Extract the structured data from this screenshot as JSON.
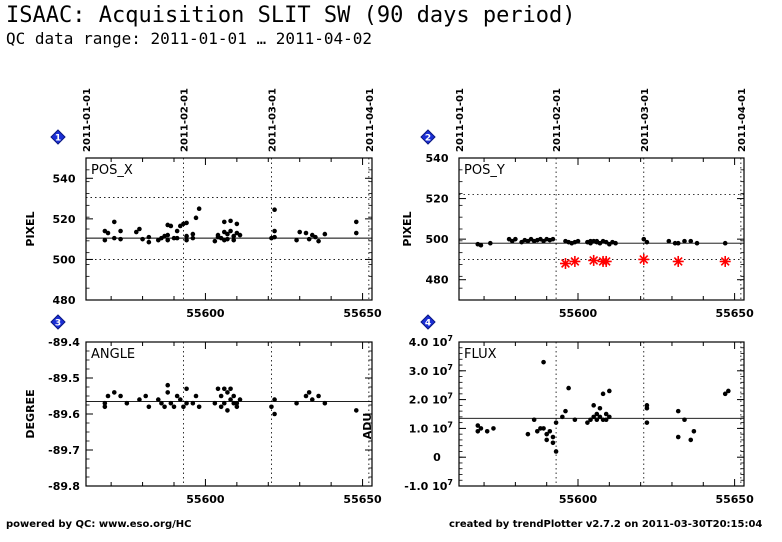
{
  "title": "ISAAC: Acquisition SLIT SW (90 days period)",
  "subtitle": "QC data range: 2011-01-01 … 2011-04-02",
  "footer": {
    "left": "powered by QC: www.eso.org/HC",
    "right": "created by trendPlotter v2.7.2 on 2011-03-30T20:15:04"
  },
  "chart_data": [
    {
      "type": "scatter",
      "panel": 1,
      "title": "POS_X",
      "ylabel": "PIXEL",
      "xlim": [
        55562,
        55653
      ],
      "ylim": [
        480,
        550
      ],
      "xticks": [
        55600,
        55650
      ],
      "yticks": [
        480,
        500,
        520,
        540
      ],
      "date_marks": [
        {
          "x": 55562,
          "label": "2011-01-01"
        },
        {
          "x": 55593,
          "label": "2011-02-01"
        },
        {
          "x": 55621,
          "label": "2011-03-01"
        },
        {
          "x": 55652,
          "label": "2011-04-01"
        }
      ],
      "ref_lines": {
        "mean": 510.5,
        "upper": 530.5,
        "lower": 500
      },
      "series": [
        {
          "marker": "dot",
          "color": "#000000",
          "x": [
            55568,
            55568,
            55569,
            55571,
            55571,
            55573,
            55573,
            55578,
            55579,
            55580,
            55582,
            55582,
            55585,
            55586,
            55587,
            55588,
            55588,
            55588,
            55589,
            55590,
            55591,
            55591,
            55592,
            55593,
            55594,
            55594,
            55594,
            55596,
            55596,
            55597,
            55598,
            55603,
            55604,
            55604,
            55605,
            55606,
            55606,
            55606,
            55607,
            55607,
            55608,
            55608,
            55609,
            55609,
            55610,
            55610,
            55611,
            55621,
            55622,
            55622,
            55622,
            55629,
            55630,
            55632,
            55633,
            55634,
            55635,
            55636,
            55638,
            55648,
            55648
          ],
          "y": [
            514,
            509.5,
            513,
            518.5,
            510.5,
            510,
            514,
            513.5,
            515,
            510,
            511,
            508.5,
            509.5,
            510.5,
            511.5,
            509.5,
            512,
            517,
            516.5,
            510.5,
            510.5,
            514,
            516.5,
            517.5,
            511.5,
            509.5,
            518,
            510.5,
            512.5,
            520.5,
            525,
            509,
            511,
            512,
            510.5,
            513.5,
            518.5,
            509.5,
            512.5,
            510,
            514,
            519,
            511.5,
            509.5,
            513,
            517.5,
            512,
            510.5,
            511,
            514,
            524.5,
            509.5,
            513.5,
            513,
            510,
            512,
            511,
            509,
            512.5,
            518.5,
            513
          ]
        }
      ]
    },
    {
      "type": "scatter",
      "panel": 2,
      "title": "POS_Y",
      "ylabel": "PIXEL",
      "xlim": [
        55562,
        55653
      ],
      "ylim": [
        470,
        540
      ],
      "xticks": [
        55600,
        55650
      ],
      "yticks": [
        480,
        500,
        520,
        540
      ],
      "date_marks": [
        {
          "x": 55562,
          "label": "2011-01-01"
        },
        {
          "x": 55593,
          "label": "2011-02-01"
        },
        {
          "x": 55621,
          "label": "2011-03-01"
        },
        {
          "x": 55652,
          "label": "2011-04-01"
        }
      ],
      "ref_lines": {
        "mean": 498,
        "upper": 522,
        "lower": 490
      },
      "series": [
        {
          "name": "",
          "marker": "dot",
          "color": "#000000",
          "x": [
            55568,
            55569,
            55572,
            55578,
            55579,
            55580,
            55582,
            55583,
            55584,
            55585,
            55586,
            55587,
            55588,
            55589,
            55590,
            55591,
            55592,
            55596,
            55597,
            55598,
            55599,
            55600,
            55603,
            55604,
            55604,
            55605,
            55606,
            55606,
            55607,
            55608,
            55609,
            55610,
            55611,
            55612,
            55621,
            55622,
            55629,
            55631,
            55632,
            55634,
            55636,
            55638,
            55647
          ],
          "y": [
            497.5,
            497,
            498,
            500,
            499,
            500,
            498.5,
            499.5,
            499,
            500,
            499,
            499.5,
            500,
            499,
            500,
            499.5,
            500,
            499,
            498.5,
            498,
            498.5,
            499,
            498.5,
            499,
            498,
            499,
            498.5,
            499,
            498,
            499,
            498.5,
            497.5,
            498.5,
            498,
            500,
            498.5,
            499,
            498,
            498,
            499,
            499,
            498,
            498
          ]
        },
        {
          "name": "",
          "marker": "star",
          "color": "#ff0000",
          "x": [
            55596,
            55599,
            55605,
            55608,
            55609,
            55621,
            55632,
            55647
          ],
          "y": [
            488,
            489,
            489.5,
            489,
            489,
            490,
            489,
            489
          ]
        }
      ]
    },
    {
      "type": "scatter",
      "panel": 3,
      "title": "ANGLE",
      "ylabel": "DEGREE",
      "xlim": [
        55562,
        55653
      ],
      "ylim": [
        -89.8,
        -89.4
      ],
      "xticks": [
        55600,
        55650
      ],
      "yticks": [
        -89.8,
        -89.7,
        -89.6,
        -89.5,
        -89.4
      ],
      "date_marks": [
        {
          "x": 55562,
          "label": ""
        },
        {
          "x": 55593,
          "label": ""
        },
        {
          "x": 55621,
          "label": ""
        },
        {
          "x": 55652,
          "label": ""
        }
      ],
      "ref_lines": {
        "mean": -89.565
      },
      "series": [
        {
          "marker": "dot",
          "color": "#000000",
          "x": [
            55568,
            55568,
            55569,
            55571,
            55573,
            55575,
            55579,
            55581,
            55582,
            55585,
            55586,
            55587,
            55588,
            55588,
            55589,
            55590,
            55591,
            55592,
            55593,
            55594,
            55594,
            55596,
            55597,
            55598,
            55603,
            55604,
            55605,
            55605,
            55606,
            55606,
            55607,
            55607,
            55608,
            55608,
            55609,
            55609,
            55610,
            55610,
            55611,
            55621,
            55622,
            55622,
            55629,
            55632,
            55633,
            55634,
            55636,
            55638,
            55648
          ],
          "y": [
            -89.57,
            -89.58,
            -89.55,
            -89.54,
            -89.55,
            -89.57,
            -89.56,
            -89.55,
            -89.58,
            -89.56,
            -89.57,
            -89.58,
            -89.52,
            -89.54,
            -89.57,
            -89.58,
            -89.55,
            -89.56,
            -89.58,
            -89.53,
            -89.57,
            -89.57,
            -89.55,
            -89.58,
            -89.57,
            -89.53,
            -89.55,
            -89.58,
            -89.53,
            -89.57,
            -89.54,
            -89.59,
            -89.53,
            -89.56,
            -89.57,
            -89.55,
            -89.58,
            -89.57,
            -89.56,
            -89.58,
            -89.56,
            -89.6,
            -89.57,
            -89.55,
            -89.54,
            -89.56,
            -89.55,
            -89.57,
            -89.59
          ]
        }
      ]
    },
    {
      "type": "scatter",
      "panel": 4,
      "title": "FLUX",
      "ylabel": "ADU",
      "xlim": [
        55562,
        55653
      ],
      "ylim": [
        -10000000.0,
        40000000.0
      ],
      "xticks": [
        55600,
        55650
      ],
      "ytick_labels": [
        {
          "v": -10000000.0,
          "m": "-1.0",
          "e": "7"
        },
        {
          "v": 0,
          "m": "0",
          "e": ""
        },
        {
          "v": 10000000.0,
          "m": "1.0",
          "e": "7"
        },
        {
          "v": 20000000.0,
          "m": "2.0",
          "e": "7"
        },
        {
          "v": 30000000.0,
          "m": "3.0",
          "e": "7"
        },
        {
          "v": 40000000.0,
          "m": "4.0",
          "e": "7"
        }
      ],
      "date_marks": [
        {
          "x": 55562,
          "label": ""
        },
        {
          "x": 55593,
          "label": ""
        },
        {
          "x": 55621,
          "label": ""
        },
        {
          "x": 55652,
          "label": ""
        }
      ],
      "ref_lines": {
        "mean": 13500000.0
      },
      "series": [
        {
          "marker": "dot",
          "color": "#000000",
          "x": [
            55568,
            55568,
            55569,
            55571,
            55573,
            55584,
            55586,
            55587,
            55588,
            55589,
            55589,
            55590,
            55590,
            55591,
            55592,
            55592,
            55593,
            55593,
            55595,
            55596,
            55597,
            55599,
            55603,
            55604,
            55605,
            55605,
            55606,
            55606,
            55607,
            55607,
            55608,
            55608,
            55609,
            55609,
            55610,
            55610,
            55622,
            55622,
            55622,
            55632,
            55632,
            55634,
            55636,
            55637,
            55647,
            55648
          ],
          "y": [
            11000000.0,
            9000000.0,
            10000000.0,
            9000000.0,
            10000000.0,
            8000000.0,
            13000000.0,
            9000000.0,
            10000000.0,
            33000000.0,
            10000000.0,
            8000000.0,
            6000000.0,
            9000000.0,
            7000000.0,
            5000000.0,
            2000000.0,
            12000000.0,
            14000000.0,
            16000000.0,
            24000000.0,
            13000000.0,
            12000000.0,
            13000000.0,
            18000000.0,
            14000000.0,
            15000000.0,
            13000000.0,
            17000000.0,
            14000000.0,
            22000000.0,
            13000000.0,
            15000000.0,
            13000000.0,
            23000000.0,
            14000000.0,
            17000000.0,
            18000000.0,
            12000000.0,
            16000000.0,
            7000000.0,
            13000000.0,
            6000000.0,
            9000000.0,
            22000000.0,
            23000000.0
          ]
        }
      ]
    }
  ]
}
